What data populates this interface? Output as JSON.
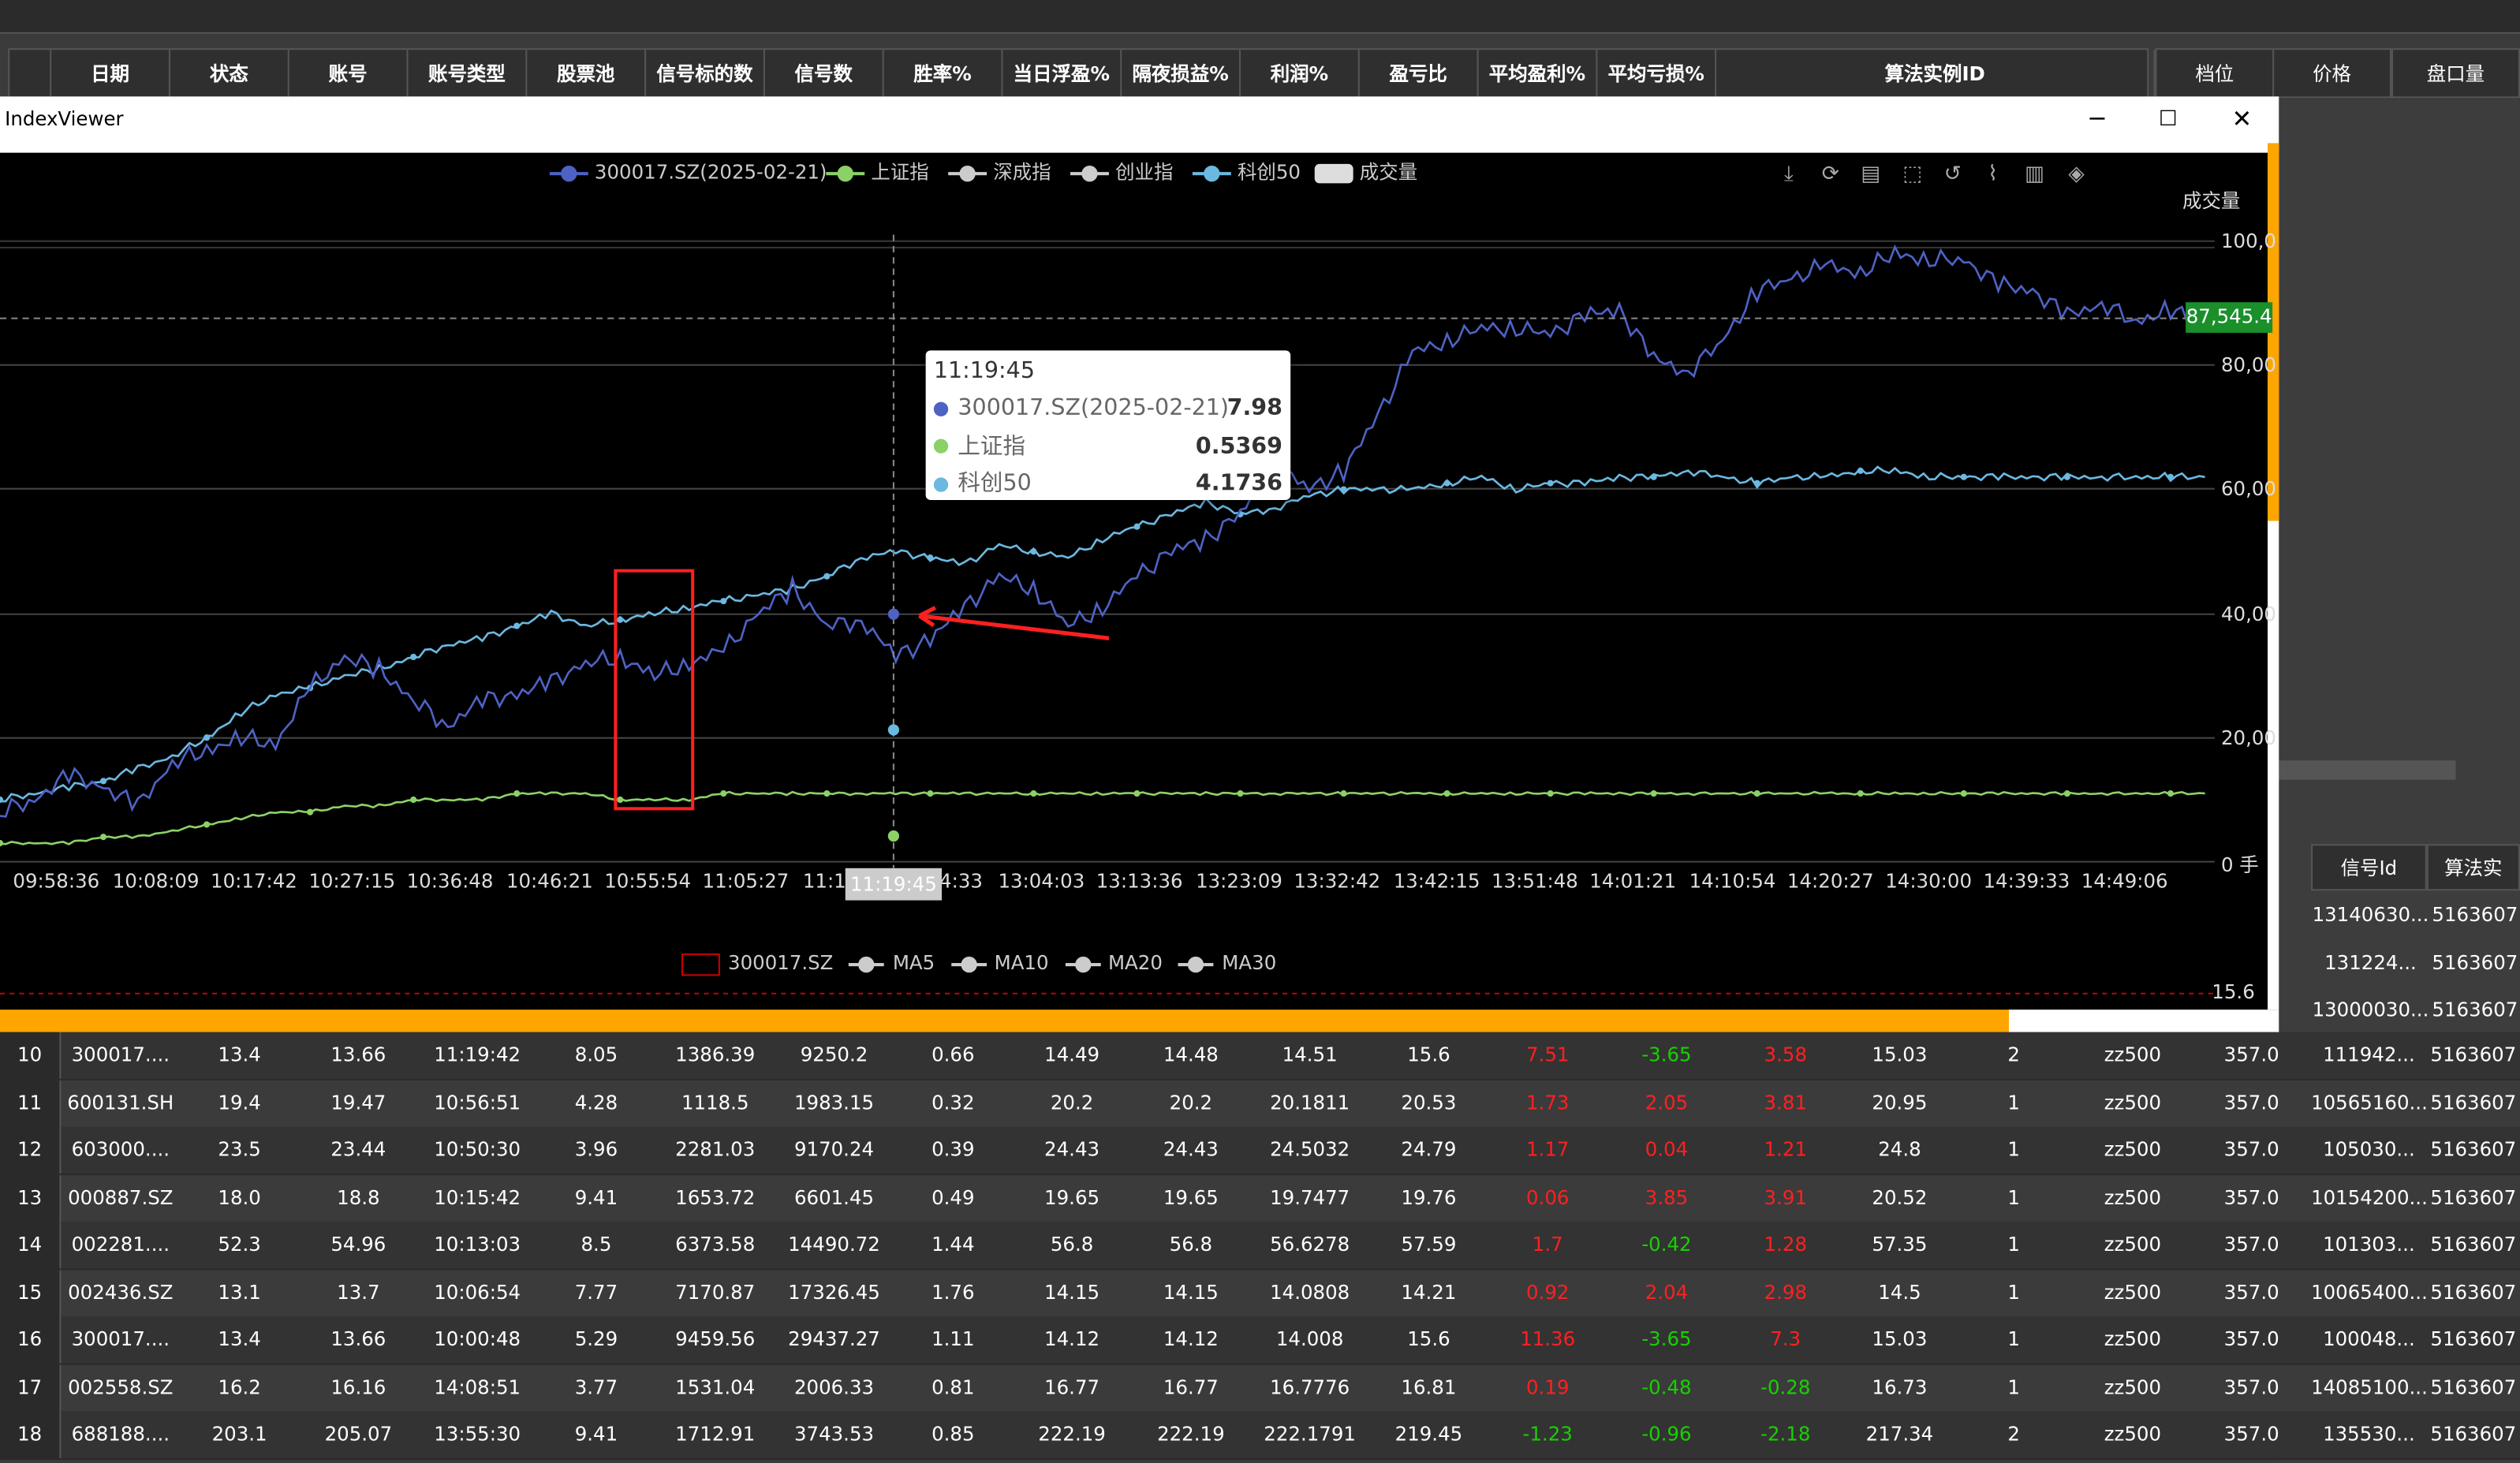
{
  "top_header": {
    "columns": [
      "日期",
      "状态",
      "账号",
      "账号类型",
      "股票池",
      "信号标的数",
      "信号数",
      "胜率%",
      "当日浮盈%",
      "隔夜损益%",
      "利润%",
      "盈亏比",
      "平均盈利%",
      "平均亏损%",
      "算法实例ID"
    ]
  },
  "right_header": {
    "columns": [
      "档位",
      "价格",
      "盘口量"
    ]
  },
  "signal_panel": {
    "headers": [
      "信号Id",
      "算法实"
    ],
    "rows": [
      [
        "13140630...",
        "5163607"
      ],
      [
        "131224...",
        "5163607"
      ],
      [
        "13000030...",
        "5163607"
      ]
    ]
  },
  "window": {
    "title": "IndexViewer",
    "min": "─",
    "max": "☐",
    "close": "✕"
  },
  "chart_data": {
    "type": "line",
    "legend": [
      "300017.SZ(2025-02-21)",
      "上证指",
      "深成指",
      "创业指",
      "科创50",
      "成交量"
    ],
    "ylabel": "成交量",
    "yticks": [
      "100,0",
      "80,00",
      "60,00",
      "40,00",
      "20,00",
      "0 手"
    ],
    "price_marker": "87,545.4",
    "x_ticks": [
      "09:58:36",
      "10:08:09",
      "10:17:42",
      "10:27:15",
      "10:36:48",
      "10:46:21",
      "10:55:54",
      "11:05:27",
      "11:1",
      "4:33",
      "13:04:03",
      "13:13:36",
      "13:23:09",
      "13:32:42",
      "13:42:15",
      "13:51:48",
      "14:01:21",
      "14:10:54",
      "14:20:27",
      "14:30:00",
      "14:39:33",
      "14:49:06"
    ],
    "cursor_x": "11:19:45",
    "tooltip": {
      "time": "11:19:45",
      "rows": [
        {
          "name": "300017.SZ(2025-02-21)",
          "value": "7.98",
          "color": "#4e62c4"
        },
        {
          "name": "上证指",
          "value": "0.5369",
          "color": "#8bd168"
        },
        {
          "name": "科创50",
          "value": "4.1736",
          "color": "#6bb8e0"
        }
      ]
    },
    "series_colors": {
      "stock": "#4e62c4",
      "sh": "#8bd168",
      "sz": "#cccccc",
      "cy": "#cccccc",
      "kc": "#6bb8e0",
      "vol": "#dddddd"
    },
    "stock_series": [
      8,
      10,
      14,
      12,
      9,
      16,
      18,
      20,
      19,
      28,
      33,
      31,
      26,
      22,
      26,
      27,
      29,
      32,
      33,
      30,
      32,
      34,
      40,
      44,
      38,
      39,
      33,
      36,
      41,
      46,
      44,
      38,
      41,
      46,
      50,
      52,
      56,
      64,
      60,
      63,
      72,
      82,
      84,
      86,
      86,
      85,
      88,
      89,
      81,
      79,
      84,
      92,
      94,
      96,
      95,
      98,
      97,
      97,
      93,
      92,
      88,
      90,
      87,
      89,
      86
    ],
    "kc_series": [
      10,
      11,
      12,
      13,
      15,
      17,
      20,
      24,
      27,
      28,
      30,
      31,
      33,
      35,
      36,
      38,
      40,
      38,
      39,
      40,
      41,
      42,
      43,
      44,
      46,
      49,
      50,
      49,
      48,
      51,
      50,
      49,
      52,
      54,
      56,
      58,
      56,
      57,
      59,
      60,
      60,
      60,
      61,
      62,
      60,
      61,
      61,
      62,
      62,
      63,
      62,
      61,
      62,
      62,
      63,
      63,
      62,
      62,
      62,
      62,
      62,
      62,
      62,
      62,
      62
    ],
    "sh_series": [
      3,
      3,
      3,
      4,
      4,
      5,
      6,
      7,
      8,
      8,
      9,
      9,
      10,
      10,
      10,
      11,
      11,
      11,
      10,
      10,
      10,
      11,
      11,
      11,
      11,
      11,
      11,
      11,
      11,
      11,
      11,
      11,
      11,
      11,
      11,
      11,
      11,
      11,
      11,
      11,
      11,
      11,
      11,
      11,
      11,
      11,
      11,
      11,
      11,
      11,
      11,
      11,
      11,
      11,
      11,
      11,
      11,
      11,
      11,
      11,
      11,
      11,
      11,
      11,
      11
    ],
    "bottom_legend": [
      "300017.SZ",
      "MA5",
      "MA10",
      "MA20",
      "MA30"
    ],
    "bottom_value": "15.6"
  },
  "table_rows": [
    {
      "n": "10",
      "c": [
        "300017....",
        "13.4",
        "13.66",
        "11:19:42",
        "8.05",
        "1386.39",
        "9250.2",
        "0.66",
        "14.49",
        "14.48",
        "14.51",
        "15.6",
        "7.51",
        "-3.65",
        "3.58",
        "15.03",
        "2",
        "zz500",
        "357.0",
        "111942...",
        "5163607"
      ],
      "s": [
        0,
        0,
        0,
        0,
        0,
        0,
        0,
        0,
        0,
        0,
        0,
        0,
        1,
        2,
        1,
        0,
        0,
        0,
        0,
        0,
        0
      ]
    },
    {
      "n": "11",
      "c": [
        "600131.SH",
        "19.4",
        "19.47",
        "10:56:51",
        "4.28",
        "1118.5",
        "1983.15",
        "0.32",
        "20.2",
        "20.2",
        "20.1811",
        "20.53",
        "1.73",
        "2.05",
        "3.81",
        "20.95",
        "1",
        "zz500",
        "357.0",
        "10565160...",
        "5163607"
      ],
      "s": [
        0,
        0,
        0,
        0,
        0,
        0,
        0,
        0,
        0,
        0,
        0,
        0,
        1,
        1,
        1,
        0,
        0,
        0,
        0,
        0,
        0
      ]
    },
    {
      "n": "12",
      "c": [
        "603000....",
        "23.5",
        "23.44",
        "10:50:30",
        "3.96",
        "2281.03",
        "9170.24",
        "0.39",
        "24.43",
        "24.43",
        "24.5032",
        "24.79",
        "1.17",
        "0.04",
        "1.21",
        "24.8",
        "1",
        "zz500",
        "357.0",
        "105030...",
        "5163607"
      ],
      "s": [
        0,
        0,
        0,
        0,
        0,
        0,
        0,
        0,
        0,
        0,
        0,
        0,
        1,
        1,
        1,
        0,
        0,
        0,
        0,
        0,
        0
      ]
    },
    {
      "n": "13",
      "c": [
        "000887.SZ",
        "18.0",
        "18.8",
        "10:15:42",
        "9.41",
        "1653.72",
        "6601.45",
        "0.49",
        "19.65",
        "19.65",
        "19.7477",
        "19.76",
        "0.06",
        "3.85",
        "3.91",
        "20.52",
        "1",
        "zz500",
        "357.0",
        "10154200...",
        "5163607"
      ],
      "s": [
        0,
        0,
        0,
        0,
        0,
        0,
        0,
        0,
        0,
        0,
        0,
        0,
        1,
        1,
        1,
        0,
        0,
        0,
        0,
        0,
        0
      ]
    },
    {
      "n": "14",
      "c": [
        "002281....",
        "52.3",
        "54.96",
        "10:13:03",
        "8.5",
        "6373.58",
        "14490.72",
        "1.44",
        "56.8",
        "56.8",
        "56.6278",
        "57.59",
        "1.7",
        "-0.42",
        "1.28",
        "57.35",
        "1",
        "zz500",
        "357.0",
        "101303...",
        "5163607"
      ],
      "s": [
        0,
        0,
        0,
        0,
        0,
        0,
        0,
        0,
        0,
        0,
        0,
        0,
        1,
        2,
        1,
        0,
        0,
        0,
        0,
        0,
        0
      ]
    },
    {
      "n": "15",
      "c": [
        "002436.SZ",
        "13.1",
        "13.7",
        "10:06:54",
        "7.77",
        "7170.87",
        "17326.45",
        "1.76",
        "14.15",
        "14.15",
        "14.0808",
        "14.21",
        "0.92",
        "2.04",
        "2.98",
        "14.5",
        "1",
        "zz500",
        "357.0",
        "10065400...",
        "5163607"
      ],
      "s": [
        0,
        0,
        0,
        0,
        0,
        0,
        0,
        0,
        0,
        0,
        0,
        0,
        1,
        1,
        1,
        0,
        0,
        0,
        0,
        0,
        0
      ]
    },
    {
      "n": "16",
      "c": [
        "300017....",
        "13.4",
        "13.66",
        "10:00:48",
        "5.29",
        "9459.56",
        "29437.27",
        "1.11",
        "14.12",
        "14.12",
        "14.008",
        "15.6",
        "11.36",
        "-3.65",
        "7.3",
        "15.03",
        "1",
        "zz500",
        "357.0",
        "100048...",
        "5163607"
      ],
      "s": [
        0,
        0,
        0,
        0,
        0,
        0,
        0,
        0,
        0,
        0,
        0,
        0,
        1,
        2,
        1,
        0,
        0,
        0,
        0,
        0,
        0
      ]
    },
    {
      "n": "17",
      "c": [
        "002558.SZ",
        "16.2",
        "16.16",
        "14:08:51",
        "3.77",
        "1531.04",
        "2006.33",
        "0.81",
        "16.77",
        "16.77",
        "16.7776",
        "16.81",
        "0.19",
        "-0.48",
        "-0.28",
        "16.73",
        "1",
        "zz500",
        "357.0",
        "14085100...",
        "5163607"
      ],
      "s": [
        0,
        0,
        0,
        0,
        0,
        0,
        0,
        0,
        0,
        0,
        0,
        0,
        1,
        2,
        2,
        0,
        0,
        0,
        0,
        0,
        0
      ]
    },
    {
      "n": "18",
      "c": [
        "688188....",
        "203.1",
        "205.07",
        "13:55:30",
        "9.41",
        "1712.91",
        "3743.53",
        "0.85",
        "222.19",
        "222.19",
        "222.1791",
        "219.45",
        "-1.23",
        "-0.96",
        "-2.18",
        "217.34",
        "2",
        "zz500",
        "357.0",
        "135530...",
        "5163607"
      ],
      "s": [
        0,
        0,
        0,
        0,
        0,
        0,
        0,
        0,
        0,
        0,
        0,
        0,
        2,
        2,
        2,
        0,
        0,
        0,
        0,
        0,
        0
      ]
    }
  ]
}
